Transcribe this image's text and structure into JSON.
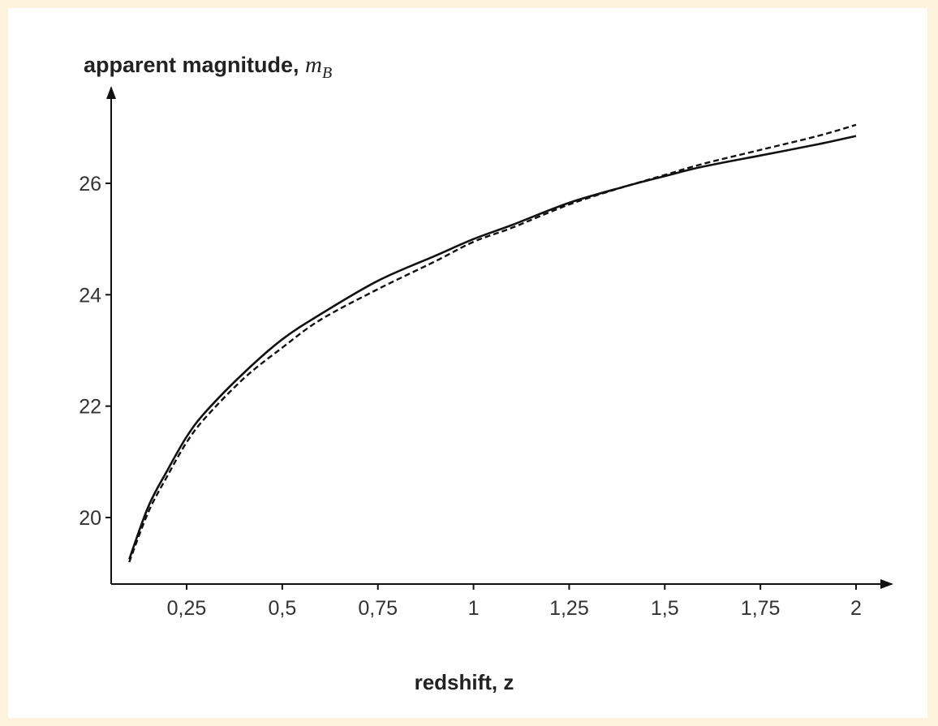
{
  "chart_data": {
    "type": "line",
    "ylabel": {
      "text": "apparent magnitude, ",
      "symbol": "m",
      "subscript": "B"
    },
    "xlabel": "redshift, z",
    "xlim": [
      0.1,
      2.02
    ],
    "ylim": [
      19.0,
      27.2
    ],
    "x_ticks": [
      {
        "value": 0.25,
        "label": "0,25"
      },
      {
        "value": 0.5,
        "label": "0,5"
      },
      {
        "value": 0.75,
        "label": "0,75"
      },
      {
        "value": 1,
        "label": "1"
      },
      {
        "value": 1.25,
        "label": "1,25"
      },
      {
        "value": 1.5,
        "label": "1,5"
      },
      {
        "value": 1.75,
        "label": "1,75"
      },
      {
        "value": 2,
        "label": "2"
      }
    ],
    "y_ticks": [
      {
        "value": 20,
        "label": "20"
      },
      {
        "value": 22,
        "label": "22"
      },
      {
        "value": 24,
        "label": "24"
      },
      {
        "value": 26,
        "label": "26"
      }
    ],
    "grid": false,
    "legend": "none",
    "series": [
      {
        "style": "solid",
        "color": "#111111",
        "x": [
          0.1,
          0.15,
          0.2,
          0.25,
          0.3,
          0.4,
          0.5,
          0.6,
          0.75,
          0.9,
          1.0,
          1.1,
          1.25,
          1.4,
          1.5,
          1.6,
          1.75,
          1.9,
          2.0
        ],
        "y": [
          19.25,
          20.2,
          20.85,
          21.45,
          21.9,
          22.6,
          23.2,
          23.65,
          24.25,
          24.7,
          25.0,
          25.25,
          25.65,
          25.95,
          26.13,
          26.3,
          26.5,
          26.7,
          26.85
        ]
      },
      {
        "style": "dashed",
        "color": "#111111",
        "x": [
          0.1,
          0.15,
          0.2,
          0.25,
          0.3,
          0.4,
          0.5,
          0.6,
          0.75,
          0.9,
          1.0,
          1.1,
          1.25,
          1.4,
          1.5,
          1.6,
          1.75,
          1.9,
          2.0
        ],
        "y": [
          19.2,
          20.1,
          20.75,
          21.35,
          21.8,
          22.5,
          23.05,
          23.55,
          24.1,
          24.6,
          24.95,
          25.2,
          25.62,
          25.95,
          26.15,
          26.35,
          26.6,
          26.85,
          27.05
        ]
      }
    ]
  }
}
